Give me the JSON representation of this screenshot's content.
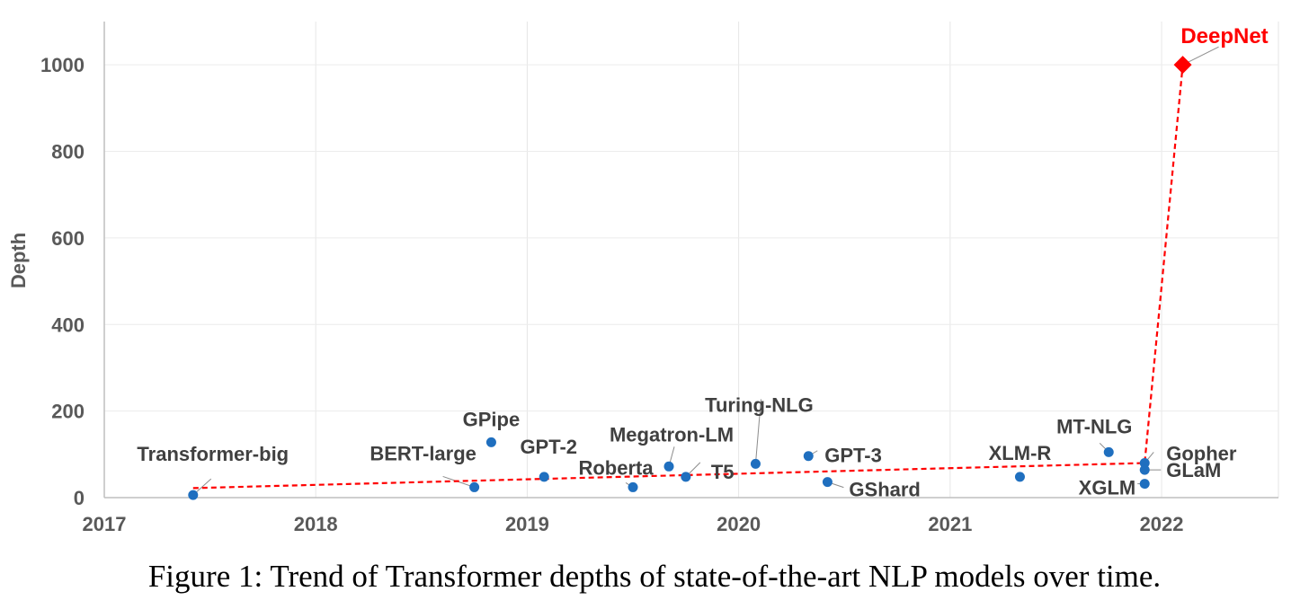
{
  "chart_data": {
    "type": "scatter",
    "xlabel": "",
    "ylabel": "Depth",
    "xlim": [
      2017,
      2022.55
    ],
    "ylim": [
      0,
      1100
    ],
    "xticks": [
      2017,
      2018,
      2019,
      2020,
      2021,
      2022
    ],
    "yticks": [
      0,
      200,
      400,
      600,
      800,
      1000
    ],
    "grid": true,
    "points": [
      {
        "label": "Transformer-big",
        "x": 2017.42,
        "y": 6
      },
      {
        "label": "BERT-large",
        "x": 2018.75,
        "y": 24
      },
      {
        "label": "GPipe",
        "x": 2018.83,
        "y": 128
      },
      {
        "label": "GPT-2",
        "x": 2019.08,
        "y": 48
      },
      {
        "label": "Roberta",
        "x": 2019.5,
        "y": 24
      },
      {
        "label": "Megatron-LM",
        "x": 2019.67,
        "y": 72
      },
      {
        "label": "T5",
        "x": 2019.75,
        "y": 48
      },
      {
        "label": "Turing-NLG",
        "x": 2020.08,
        "y": 78
      },
      {
        "label": "GPT-3",
        "x": 2020.33,
        "y": 96
      },
      {
        "label": "GShard",
        "x": 2020.42,
        "y": 36
      },
      {
        "label": "XLM-R",
        "x": 2021.33,
        "y": 48
      },
      {
        "label": "MT-NLG",
        "x": 2021.75,
        "y": 105
      },
      {
        "label": "Gopher",
        "x": 2021.92,
        "y": 80
      },
      {
        "label": "GLaM",
        "x": 2021.92,
        "y": 64
      },
      {
        "label": "XGLM",
        "x": 2021.92,
        "y": 32
      }
    ],
    "highlight": {
      "label": "DeepNet",
      "x": 2022.1,
      "y": 1000,
      "color": "#ff0000"
    },
    "trendline": {
      "color": "#ff0000",
      "style": "dashed",
      "points": [
        [
          2017.42,
          22
        ],
        [
          2021.92,
          80
        ],
        [
          2022.1,
          1000
        ]
      ]
    },
    "point_color": "#1f6fbf"
  },
  "caption": "Figure 1: Trend of Transformer depths of state-of-the-art NLP models over time."
}
